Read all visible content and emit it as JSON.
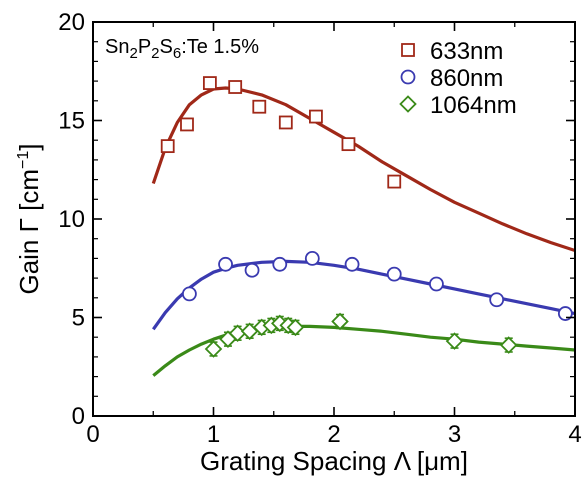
{
  "chart_data": {
    "type": "scatter",
    "annotation": {
      "base": "Sn",
      "s1": "2",
      "p": "P",
      "s2": "2",
      "s": "S",
      "s3": "6",
      "rest": ":Te 1.5%"
    },
    "xlabel": "Grating Spacing Λ [μm]",
    "ylabel": {
      "prefix": "Gain Γ [cm",
      "sup": "−1",
      "suffix": "]"
    },
    "xlim": [
      0,
      4
    ],
    "ylim": [
      0,
      20
    ],
    "xticks": [
      "0",
      "1",
      "2",
      "3",
      "4"
    ],
    "yticks": [
      "0",
      "5",
      "10",
      "15",
      "20"
    ],
    "xtick_values": [
      0,
      1,
      2,
      3,
      4
    ],
    "ytick_values": [
      0,
      5,
      10,
      15,
      20
    ],
    "grid": false,
    "legend_position": "top-right",
    "series": [
      {
        "name": "633nm",
        "marker": "square",
        "color": "#a02818",
        "points": [
          {
            "x": 0.62,
            "y": 13.7
          },
          {
            "x": 0.78,
            "y": 14.8
          },
          {
            "x": 0.97,
            "y": 16.9
          },
          {
            "x": 1.18,
            "y": 16.7
          },
          {
            "x": 1.38,
            "y": 15.7
          },
          {
            "x": 1.6,
            "y": 14.9
          },
          {
            "x": 1.85,
            "y": 15.2
          },
          {
            "x": 2.12,
            "y": 13.8
          },
          {
            "x": 2.5,
            "y": 11.9
          }
        ],
        "fit": [
          {
            "x": 0.5,
            "y": 11.8
          },
          {
            "x": 0.6,
            "y": 13.6
          },
          {
            "x": 0.7,
            "y": 14.9
          },
          {
            "x": 0.8,
            "y": 15.8
          },
          {
            "x": 0.9,
            "y": 16.3
          },
          {
            "x": 1.0,
            "y": 16.6
          },
          {
            "x": 1.1,
            "y": 16.65
          },
          {
            "x": 1.2,
            "y": 16.6
          },
          {
            "x": 1.4,
            "y": 16.3
          },
          {
            "x": 1.6,
            "y": 15.8
          },
          {
            "x": 1.8,
            "y": 15.1
          },
          {
            "x": 2.0,
            "y": 14.4
          },
          {
            "x": 2.2,
            "y": 13.7
          },
          {
            "x": 2.4,
            "y": 12.9
          },
          {
            "x": 2.6,
            "y": 12.2
          },
          {
            "x": 2.8,
            "y": 11.5
          },
          {
            "x": 3.0,
            "y": 10.85
          },
          {
            "x": 3.2,
            "y": 10.3
          },
          {
            "x": 3.4,
            "y": 9.75
          },
          {
            "x": 3.6,
            "y": 9.25
          },
          {
            "x": 3.8,
            "y": 8.8
          },
          {
            "x": 4.0,
            "y": 8.4
          }
        ]
      },
      {
        "name": "860nm",
        "marker": "circle",
        "color": "#3a3ab0",
        "points": [
          {
            "x": 0.8,
            "y": 6.2
          },
          {
            "x": 1.1,
            "y": 7.7
          },
          {
            "x": 1.32,
            "y": 7.4
          },
          {
            "x": 1.55,
            "y": 7.7
          },
          {
            "x": 1.82,
            "y": 8.0
          },
          {
            "x": 2.15,
            "y": 7.7
          },
          {
            "x": 2.5,
            "y": 7.2
          },
          {
            "x": 2.85,
            "y": 6.7
          },
          {
            "x": 3.35,
            "y": 5.9
          },
          {
            "x": 3.92,
            "y": 5.2
          }
        ],
        "fit": [
          {
            "x": 0.5,
            "y": 4.4
          },
          {
            "x": 0.6,
            "y": 5.25
          },
          {
            "x": 0.7,
            "y": 5.95
          },
          {
            "x": 0.8,
            "y": 6.5
          },
          {
            "x": 0.9,
            "y": 6.95
          },
          {
            "x": 1.0,
            "y": 7.3
          },
          {
            "x": 1.1,
            "y": 7.5
          },
          {
            "x": 1.2,
            "y": 7.65
          },
          {
            "x": 1.4,
            "y": 7.8
          },
          {
            "x": 1.6,
            "y": 7.85
          },
          {
            "x": 1.8,
            "y": 7.8
          },
          {
            "x": 2.0,
            "y": 7.65
          },
          {
            "x": 2.2,
            "y": 7.45
          },
          {
            "x": 2.4,
            "y": 7.2
          },
          {
            "x": 2.6,
            "y": 6.95
          },
          {
            "x": 2.8,
            "y": 6.7
          },
          {
            "x": 3.0,
            "y": 6.45
          },
          {
            "x": 3.2,
            "y": 6.2
          },
          {
            "x": 3.4,
            "y": 5.95
          },
          {
            "x": 3.6,
            "y": 5.7
          },
          {
            "x": 3.8,
            "y": 5.45
          },
          {
            "x": 4.0,
            "y": 5.2
          }
        ]
      },
      {
        "name": "1064nm",
        "marker": "diamond",
        "color": "#3a8a18",
        "points": [
          {
            "x": 1.0,
            "y": 3.4,
            "err": 0.35
          },
          {
            "x": 1.12,
            "y": 3.9,
            "err": 0.35
          },
          {
            "x": 1.2,
            "y": 4.2,
            "err": 0.35
          },
          {
            "x": 1.3,
            "y": 4.3,
            "err": 0.35
          },
          {
            "x": 1.4,
            "y": 4.5,
            "err": 0.35
          },
          {
            "x": 1.48,
            "y": 4.6,
            "err": 0.35
          },
          {
            "x": 1.55,
            "y": 4.7,
            "err": 0.35
          },
          {
            "x": 1.62,
            "y": 4.6,
            "err": 0.35
          },
          {
            "x": 1.68,
            "y": 4.5,
            "err": 0.35
          },
          {
            "x": 2.05,
            "y": 4.8,
            "err": 0.35
          },
          {
            "x": 3.0,
            "y": 3.8,
            "err": 0.35
          },
          {
            "x": 3.45,
            "y": 3.6,
            "err": 0.35
          }
        ],
        "fit": [
          {
            "x": 0.5,
            "y": 2.05
          },
          {
            "x": 0.6,
            "y": 2.55
          },
          {
            "x": 0.7,
            "y": 3.0
          },
          {
            "x": 0.8,
            "y": 3.35
          },
          {
            "x": 0.9,
            "y": 3.65
          },
          {
            "x": 1.0,
            "y": 3.9
          },
          {
            "x": 1.1,
            "y": 4.1
          },
          {
            "x": 1.2,
            "y": 4.25
          },
          {
            "x": 1.4,
            "y": 4.45
          },
          {
            "x": 1.6,
            "y": 4.55
          },
          {
            "x": 1.8,
            "y": 4.55
          },
          {
            "x": 2.0,
            "y": 4.5
          },
          {
            "x": 2.2,
            "y": 4.4
          },
          {
            "x": 2.4,
            "y": 4.3
          },
          {
            "x": 2.6,
            "y": 4.15
          },
          {
            "x": 2.8,
            "y": 4.0
          },
          {
            "x": 3.0,
            "y": 3.9
          },
          {
            "x": 3.2,
            "y": 3.75
          },
          {
            "x": 3.4,
            "y": 3.65
          },
          {
            "x": 3.6,
            "y": 3.55
          },
          {
            "x": 3.8,
            "y": 3.45
          },
          {
            "x": 4.0,
            "y": 3.35
          }
        ]
      }
    ]
  }
}
